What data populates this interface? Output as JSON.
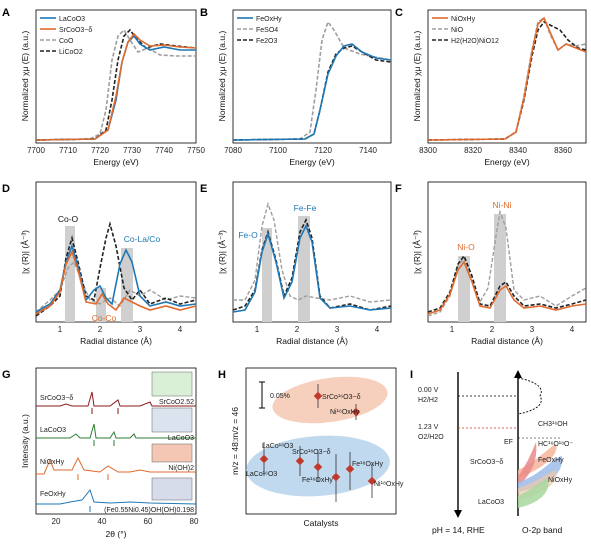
{
  "colors": {
    "blue": "#1f77b4",
    "orange": "#e06a2c",
    "gray": "#9e9e9e",
    "black": "#222222",
    "salmon": "#f4b49a",
    "red": "#c0392b",
    "lightblue": "#b9d5ec"
  },
  "panels": {
    "A": {
      "letter": "A",
      "xlabel": "Energy (eV)",
      "ylabel": "Normalized χμ (E) (a.u.)",
      "xticks": [
        "7700",
        "7710",
        "7720",
        "7730",
        "7740",
        "7750"
      ],
      "legend": [
        "LaCoO3",
        "SrCoO3−δ",
        "CoO",
        "LiCoO2"
      ]
    },
    "B": {
      "letter": "B",
      "xlabel": "Energy (eV)",
      "ylabel": "Normalized χμ (E) (a.u.)",
      "xticks": [
        "7080",
        "7100",
        "7120",
        "7140"
      ],
      "legend": [
        "FeOxHy",
        "FeSO4",
        "Fe2O3"
      ]
    },
    "C": {
      "letter": "C",
      "xlabel": "Energy (eV)",
      "ylabel": "Normalized χμ (E) (a.u.)",
      "xticks": [
        "8300",
        "8320",
        "8340",
        "8360"
      ],
      "legend": [
        "NiOxHy",
        "NiO",
        "H2(H2O)NiO12"
      ]
    },
    "D": {
      "letter": "D",
      "xlabel": "Radial distance (Å)",
      "ylabel": "|χ (R)| (Å⁻³)",
      "xticks": [
        "1",
        "2",
        "3",
        "4"
      ],
      "annotations": [
        "Co-O",
        "Co-La/Co",
        "Co-Co"
      ]
    },
    "E": {
      "letter": "E",
      "xlabel": "Radial distance (Å)",
      "ylabel": "|χ (R)| (Å⁻³)",
      "xticks": [
        "1",
        "2",
        "3",
        "4"
      ],
      "annotations": [
        "Fe-O",
        "Fe-Fe"
      ]
    },
    "F": {
      "letter": "F",
      "xlabel": "Radial distance (Å)",
      "ylabel": "|χ (R)| (Å⁻³)",
      "xticks": [
        "1",
        "2",
        "3",
        "4"
      ],
      "annotations": [
        "Ni-O",
        "Ni-Ni"
      ]
    },
    "G": {
      "letter": "G",
      "xlabel": "2θ (°)",
      "ylabel": "Intensity (a.u.)",
      "xticks": [
        "20",
        "40",
        "60",
        "80"
      ],
      "labels": [
        "SrCoO3−δ",
        "LaCoO3",
        "NiOxHy",
        "FeOxHy"
      ],
      "refs": [
        "SrCoO2.52",
        "LaCoO3",
        "Ni(OH)2",
        "(Fe0.55Ni0.45)OH(OH)0.198"
      ]
    },
    "H": {
      "letter": "H",
      "xlabel": "Catalysts",
      "ylabel": "m/z = 48:m/z = 46",
      "scale": "0.05%",
      "labels": [
        "SrCo¹⁶O3−δ",
        "Ni¹⁶OxHy",
        "LaCo¹⁸O3",
        "SrCo¹⁸O3−δ",
        "LaCo¹⁶O3",
        "Fe¹⁶OxHy",
        "Fe¹⁸OxHy",
        "Ni¹⁸OxHy"
      ]
    },
    "I": {
      "letter": "I",
      "rhe": "0.00 V",
      "rhe_sub": "H2/H2",
      "oer": "1.23 V",
      "oer_sub": "O2/H2O",
      "ef": "EF",
      "ch3": "CH3¹⁶OH",
      "hc": "HC¹⁶O¹⁸O⁻",
      "bands": [
        "SrCoO3−δ",
        "NiOxHy",
        "FeOxHy",
        "LaCoO3"
      ],
      "bottom_left": "pH = 14, RHE",
      "bottom_right": "O-2p band"
    }
  }
}
